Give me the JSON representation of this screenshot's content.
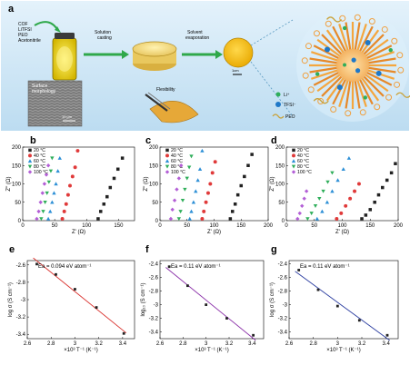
{
  "panel_a": {
    "label": "a",
    "vial_text": [
      "COF",
      "LiTFSI",
      "PEO",
      "Acetonitrile"
    ],
    "step1": [
      "Solution",
      "casting"
    ],
    "step2": [
      "Solvent",
      "evaporation"
    ],
    "scale_small": "1cm",
    "sem_title": [
      "Surface",
      "morphology"
    ],
    "sem_scale": "10 μm",
    "flex_label": "Flexibility",
    "legend": [
      {
        "label": "Li⁺",
        "color": "#2fae5a"
      },
      {
        "label": "TFSI⁻",
        "color": "#1f78c8"
      },
      {
        "label": "PEO",
        "color": "#c9a23a"
      }
    ]
  },
  "chart_data": [
    {
      "id": "b",
      "type": "scatter",
      "xlabel": "Z' (Ω)",
      "ylabel": "Z'' (Ω)",
      "xlim": [
        0,
        175
      ],
      "ylim": [
        0,
        200
      ],
      "xticks": [
        0,
        50,
        100,
        150
      ],
      "yticks": [
        0,
        50,
        100,
        150,
        200
      ],
      "series": [
        {
          "name": "20 °C",
          "color": "#222222",
          "marker": "square",
          "x": [
            118,
            122,
            127,
            132,
            137,
            143,
            149,
            156
          ],
          "y": [
            5,
            25,
            45,
            65,
            90,
            115,
            140,
            170
          ]
        },
        {
          "name": "40 °C",
          "color": "#e03a3a",
          "marker": "circle",
          "x": [
            62,
            65,
            68,
            71,
            74,
            78,
            82,
            86
          ],
          "y": [
            5,
            25,
            45,
            70,
            95,
            120,
            145,
            190
          ]
        },
        {
          "name": "60 °C",
          "color": "#2c8fd6",
          "marker": "triangle",
          "x": [
            40,
            43,
            46,
            49,
            52,
            55,
            58
          ],
          "y": [
            5,
            25,
            50,
            75,
            100,
            135,
            170
          ]
        },
        {
          "name": "80 °C",
          "color": "#2fae5a",
          "marker": "tri-down",
          "x": [
            29,
            32,
            35,
            38,
            41,
            44,
            46
          ],
          "y": [
            5,
            25,
            50,
            75,
            105,
            135,
            170
          ]
        },
        {
          "name": "100 °C",
          "color": "#b35fd6",
          "marker": "diamond",
          "x": [
            22,
            25,
            28,
            31,
            34,
            37,
            40
          ],
          "y": [
            5,
            25,
            50,
            75,
            100,
            125,
            150
          ]
        }
      ]
    },
    {
      "id": "c",
      "type": "scatter",
      "xlabel": "Z' (Ω)",
      "ylabel": "Z'' (Ω)",
      "xlim": [
        0,
        200
      ],
      "ylim": [
        0,
        200
      ],
      "xticks": [
        0,
        50,
        100,
        150,
        200
      ],
      "yticks": [
        0,
        50,
        100,
        150,
        200
      ],
      "series": [
        {
          "name": "20 °C",
          "color": "#222222",
          "marker": "square",
          "x": [
            130,
            134,
            139,
            144,
            150,
            156,
            163,
            170
          ],
          "y": [
            5,
            25,
            45,
            70,
            95,
            120,
            150,
            180
          ]
        },
        {
          "name": "40 °C",
          "color": "#e03a3a",
          "marker": "circle",
          "x": [
            78,
            81,
            85,
            89,
            93,
            97,
            102
          ],
          "y": [
            5,
            25,
            50,
            75,
            100,
            130,
            160
          ]
        },
        {
          "name": "60 °C",
          "color": "#2c8fd6",
          "marker": "triangle",
          "x": [
            55,
            58,
            62,
            66,
            70,
            74,
            78
          ],
          "y": [
            5,
            25,
            50,
            80,
            110,
            140,
            190
          ]
        },
        {
          "name": "80 °C",
          "color": "#2fae5a",
          "marker": "tri-down",
          "x": [
            35,
            38,
            42,
            46,
            50,
            54,
            58
          ],
          "y": [
            5,
            25,
            55,
            85,
            115,
            145,
            175
          ]
        },
        {
          "name": "100 °C",
          "color": "#b35fd6",
          "marker": "diamond",
          "x": [
            20,
            23,
            27,
            31,
            35,
            39
          ],
          "y": [
            5,
            30,
            55,
            85,
            115,
            150
          ]
        }
      ]
    },
    {
      "id": "d",
      "type": "scatter",
      "xlabel": "Z' (Ω)",
      "ylabel": "Z'' (Ω)",
      "xlim": [
        0,
        200
      ],
      "ylim": [
        0,
        200
      ],
      "xticks": [
        0,
        50,
        100,
        150,
        200
      ],
      "yticks": [
        0,
        50,
        100,
        150,
        200
      ],
      "series": [
        {
          "name": "20 °C",
          "color": "#222222",
          "marker": "square",
          "x": [
            135,
            142,
            150,
            158,
            165,
            172,
            180,
            188,
            195
          ],
          "y": [
            5,
            15,
            30,
            50,
            70,
            90,
            110,
            130,
            155
          ]
        },
        {
          "name": "40 °C",
          "color": "#e03a3a",
          "marker": "circle",
          "x": [
            90,
            98,
            106,
            114,
            122,
            130
          ],
          "y": [
            5,
            20,
            40,
            60,
            80,
            100
          ]
        },
        {
          "name": "60 °C",
          "color": "#2c8fd6",
          "marker": "triangle",
          "x": [
            55,
            64,
            73,
            82,
            92,
            102,
            112
          ],
          "y": [
            5,
            25,
            50,
            80,
            110,
            140,
            170
          ]
        },
        {
          "name": "80 °C",
          "color": "#2fae5a",
          "marker": "tri-down",
          "x": [
            38,
            45,
            52,
            59,
            66,
            74,
            82
          ],
          "y": [
            5,
            20,
            40,
            60,
            80,
            105,
            130
          ]
        },
        {
          "name": "100 °C",
          "color": "#b35fd6",
          "marker": "diamond",
          "x": [
            20,
            24,
            28,
            32,
            36
          ],
          "y": [
            5,
            20,
            40,
            60,
            80
          ]
        }
      ]
    },
    {
      "id": "e",
      "type": "scatter",
      "annotation": "Ea = 0.094 eV atom⁻¹",
      "xlabel": "×10³ T⁻¹ (K⁻¹)",
      "ylabel": "log σ (S cm⁻¹)",
      "xlim": [
        2.6,
        3.5
      ],
      "ylim": [
        -3.45,
        -2.55
      ],
      "xticks": [
        2.6,
        2.8,
        3.0,
        3.2,
        3.4
      ],
      "yticks": [
        -2.6,
        -2.8,
        -3.0,
        -3.2,
        -3.4
      ],
      "fit_color": "#d9302c",
      "x": [
        2.68,
        2.84,
        3.0,
        3.18,
        3.41
      ],
      "y": [
        -2.59,
        -2.71,
        -2.88,
        -3.09,
        -3.39
      ]
    },
    {
      "id": "f",
      "type": "scatter",
      "annotation": "Ea = 0.11 eV atom⁻¹",
      "xlabel": "×10³ T⁻¹ (K⁻¹)",
      "ylabel": "log₁₀ (S cm⁻¹)",
      "xlim": [
        2.6,
        3.5
      ],
      "ylim": [
        -3.5,
        -2.35
      ],
      "xticks": [
        2.6,
        2.8,
        3.0,
        3.2,
        3.4
      ],
      "yticks": [
        -2.4,
        -2.6,
        -2.8,
        -3.0,
        -3.2,
        -3.4
      ],
      "fit_color": "#8a2fa8",
      "x": [
        2.68,
        2.84,
        3.0,
        3.18,
        3.41
      ],
      "y": [
        -2.44,
        -2.72,
        -3.0,
        -3.2,
        -3.45
      ]
    },
    {
      "id": "g",
      "type": "scatter",
      "annotation": "Ea = 0.11 eV atom⁻¹",
      "xlabel": "×10³ T⁻¹ (K⁻¹)",
      "ylabel": "log σ (S cm⁻¹)",
      "xlim": [
        2.6,
        3.5
      ],
      "ylim": [
        -3.5,
        -2.35
      ],
      "xticks": [
        2.6,
        2.8,
        3.0,
        3.2,
        3.4
      ],
      "yticks": [
        -2.4,
        -2.6,
        -2.8,
        -3.0,
        -3.2,
        -3.4
      ],
      "fit_color": "#2b3da0",
      "x": [
        2.68,
        2.84,
        3.0,
        3.18,
        3.41
      ],
      "y": [
        -2.49,
        -2.78,
        -3.02,
        -3.23,
        -3.45
      ]
    }
  ]
}
